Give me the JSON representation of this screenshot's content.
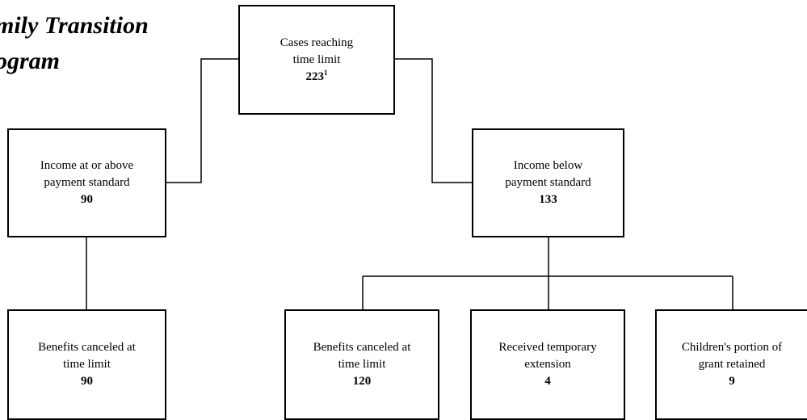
{
  "title": {
    "line1": "mily Transition",
    "line2": "ogram"
  },
  "nodes": {
    "root": {
      "line1": "Cases reaching",
      "line2": "time limit",
      "value": "223",
      "footnote": "1"
    },
    "above": {
      "line1": "Income at or above",
      "line2": "payment standard",
      "value": "90"
    },
    "below": {
      "line1": "Income below",
      "line2": "payment standard",
      "value": "133"
    },
    "above_canceled": {
      "line1": "Benefits canceled at",
      "line2": "time limit",
      "value": "90"
    },
    "below_canceled": {
      "line1": "Benefits canceled at",
      "line2": "time limit",
      "value": "120"
    },
    "extension": {
      "line1": "Received temporary",
      "line2": "extension",
      "value": "4"
    },
    "children": {
      "line1": "Children's portion of",
      "line2": "grant retained",
      "value": "9"
    }
  }
}
